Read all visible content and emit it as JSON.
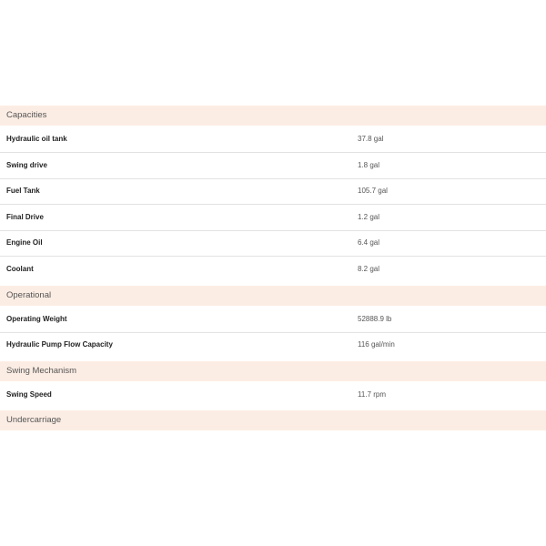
{
  "sections": [
    {
      "title": "Capacities",
      "rows": [
        {
          "label": "Hydraulic oil tank",
          "value": "37.8 gal"
        },
        {
          "label": "Swing drive",
          "value": "1.8 gal"
        },
        {
          "label": "Fuel Tank",
          "value": "105.7 gal"
        },
        {
          "label": "Final Drive",
          "value": "1.2 gal"
        },
        {
          "label": "Engine Oil",
          "value": "6.4 gal"
        },
        {
          "label": "Coolant",
          "value": "8.2 gal"
        }
      ]
    },
    {
      "title": "Operational",
      "rows": [
        {
          "label": "Operating Weight",
          "value": "52888.9 lb"
        },
        {
          "label": "Hydraulic Pump Flow Capacity",
          "value": "116 gal/min"
        }
      ]
    },
    {
      "title": "Swing Mechanism",
      "rows": [
        {
          "label": "Swing Speed",
          "value": "11.7 rpm"
        }
      ]
    },
    {
      "title": "Undercarriage",
      "rows": []
    }
  ]
}
